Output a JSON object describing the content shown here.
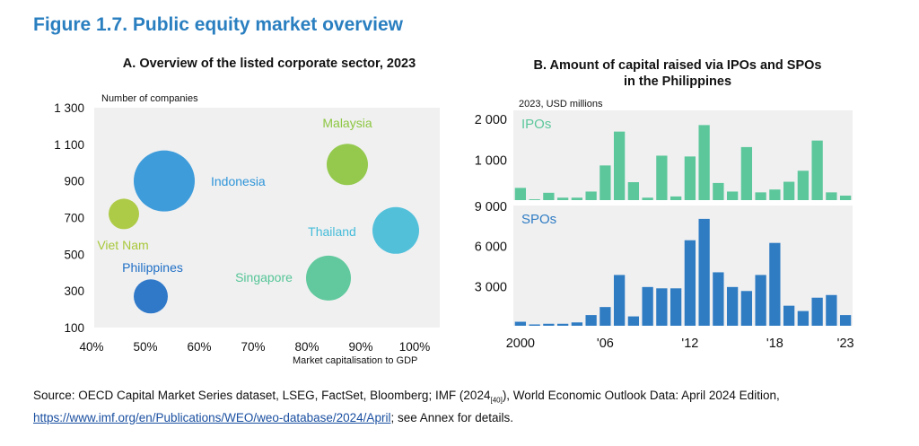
{
  "figure_title": "Figure 1.7. Public equity market overview",
  "source": {
    "text_before": "Source: OECD Capital Market Series dataset, LSEG, FactSet, Bloomberg; IMF (2024",
    "ref": "[40]",
    "text_middle": "), World Economic Outlook Data: April 2024 Edition,",
    "link": "https://www.imf.org/en/Publications/WEO/weo-database/2024/April",
    "text_after": "; see Annex for details."
  },
  "chart_data": [
    {
      "type": "scatter",
      "title": "A.  Overview of the listed corporate sector, 2023",
      "xlabel": "Market capitalisation to GDP",
      "ylabel": "Number of companies",
      "xlim": [
        0.4,
        1.05
      ],
      "ylim": [
        100,
        1300
      ],
      "xticks": [
        0.4,
        0.5,
        0.6,
        0.7,
        0.8,
        0.9,
        1.0
      ],
      "xtick_labels": [
        "40%",
        "50%",
        "60%",
        "70%",
        "80%",
        "90%",
        "100%"
      ],
      "yticks": [
        100,
        300,
        500,
        700,
        900,
        1100,
        1300
      ],
      "ytick_labels": [
        "100",
        "300",
        "500",
        "700",
        "900",
        "1 100",
        "1 300"
      ],
      "grid": false,
      "points": [
        {
          "label": "Indonesia",
          "x": 0.535,
          "y": 900,
          "size": 34,
          "color": "#2f95d8"
        },
        {
          "label": "Malaysia",
          "x": 0.875,
          "y": 990,
          "size": 23,
          "color": "#8cc63f"
        },
        {
          "label": "Viet Nam",
          "x": 0.46,
          "y": 720,
          "size": 17,
          "color": "#a8c83a"
        },
        {
          "label": "Thailand",
          "x": 0.965,
          "y": 630,
          "size": 26,
          "color": "#45bcd8"
        },
        {
          "label": "Singapore",
          "x": 0.84,
          "y": 370,
          "size": 25,
          "color": "#55c596"
        },
        {
          "label": "Philippines",
          "x": 0.51,
          "y": 270,
          "size": 19,
          "color": "#1f6fc5"
        }
      ]
    },
    {
      "type": "bar",
      "title": "B.  Amount of capital raised via IPOs and SPOs in the Philippines",
      "title_line1": "B.  Amount of capital raised via IPOs and SPOs",
      "title_line2": "in the Philippines",
      "ylabel": "2023, USD millions",
      "categories": [
        "2000",
        "2001",
        "2002",
        "2003",
        "2004",
        "2005",
        "2006",
        "2007",
        "2008",
        "2009",
        "2010",
        "2011",
        "2012",
        "2013",
        "2014",
        "2015",
        "2016",
        "2017",
        "2018",
        "2019",
        "2020",
        "2021",
        "2022",
        "2023"
      ],
      "xtick_labels": [
        "2000",
        "'06",
        "'12",
        "'18",
        "'23"
      ],
      "series": [
        {
          "name": "IPOs",
          "color": "#5cc79b",
          "ylim": [
            0,
            2200
          ],
          "yticks": [
            1000,
            2000
          ],
          "ytick_labels": [
            "1 000",
            "2 000"
          ],
          "values": [
            300,
            20,
            180,
            60,
            60,
            210,
            850,
            1680,
            440,
            60,
            1090,
            90,
            1070,
            1840,
            420,
            210,
            1300,
            190,
            260,
            450,
            720,
            1460,
            190,
            110
          ]
        },
        {
          "name": "SPOs",
          "color": "#2f7cc3",
          "ylim": [
            0,
            9000
          ],
          "yticks": [
            3000,
            6000,
            9000
          ],
          "ytick_labels": [
            "3 000",
            "6 000",
            "9 000"
          ],
          "values": [
            300,
            100,
            150,
            150,
            250,
            800,
            1400,
            3800,
            700,
            2900,
            2800,
            2800,
            6400,
            8000,
            4000,
            2900,
            2600,
            3800,
            6200,
            1500,
            1100,
            2100,
            2300,
            800
          ]
        }
      ]
    }
  ]
}
